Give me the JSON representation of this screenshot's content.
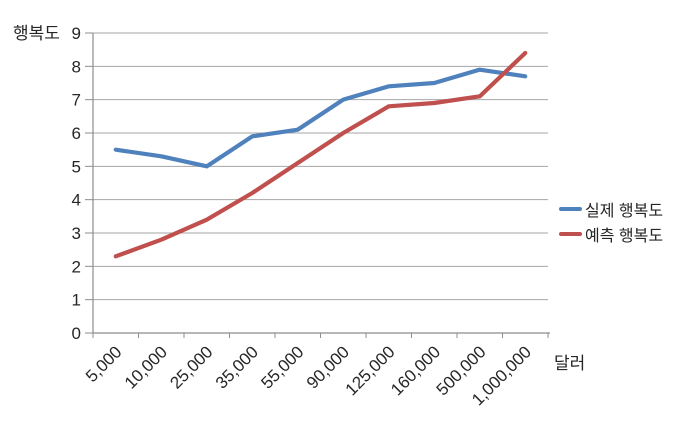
{
  "chart_data": {
    "type": "line",
    "title": "",
    "ylabel": "행복도",
    "xlabel": "달러",
    "categories": [
      "5,000",
      "10,000",
      "25,000",
      "35,000",
      "55,000",
      "90,000",
      "125,000",
      "160,000",
      "500,000",
      "1,000,000"
    ],
    "series": [
      {
        "name": "실제 행복도",
        "color": "#4F81BD",
        "values": [
          5.5,
          5.3,
          5.0,
          5.9,
          6.1,
          7.0,
          7.4,
          7.5,
          7.9,
          7.7
        ]
      },
      {
        "name": "예측 행복도",
        "color": "#C0504D",
        "values": [
          2.3,
          2.8,
          3.4,
          4.2,
          5.1,
          6.0,
          6.8,
          6.9,
          7.1,
          8.4
        ]
      }
    ],
    "ylim": [
      0,
      9
    ],
    "y_ticks": [
      0,
      1,
      2,
      3,
      4,
      5,
      6,
      7,
      8,
      9
    ],
    "grid": true,
    "legend_position": "right",
    "grid_color": "#A6A6A6",
    "axis_color": "#8C8C8C",
    "label_color": "#262626"
  }
}
